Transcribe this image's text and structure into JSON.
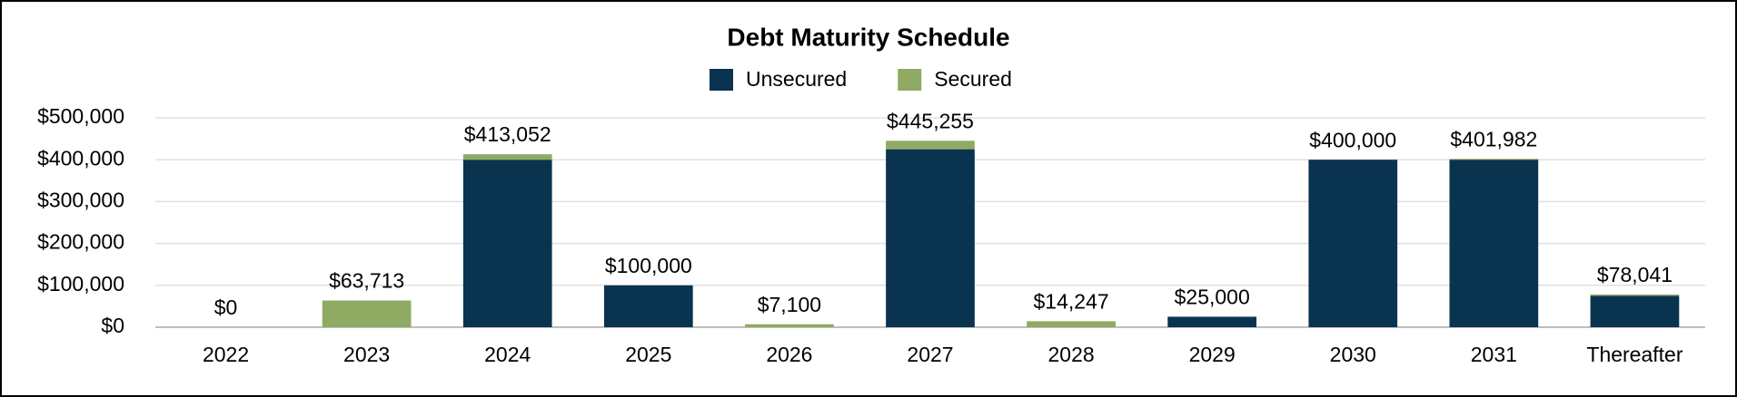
{
  "chart_data": {
    "type": "stacked-bar",
    "title": "Debt Maturity Schedule",
    "categories": [
      "2022",
      "2023",
      "2024",
      "2025",
      "2026",
      "2027",
      "2028",
      "2029",
      "2030",
      "2031",
      "Thereafter"
    ],
    "series": [
      {
        "name": "Unsecured",
        "color": "#0a3350",
        "values": [
          0,
          0,
          400000,
          100000,
          0,
          425000,
          0,
          25000,
          400000,
          400000,
          75000
        ]
      },
      {
        "name": "Secured",
        "color": "#8faa62",
        "values": [
          0,
          63713,
          13052,
          0,
          7100,
          20255,
          14247,
          0,
          0,
          1982,
          3041
        ]
      }
    ],
    "totals": {
      "values": [
        0,
        63713,
        413052,
        100000,
        7100,
        445255,
        14247,
        25000,
        400000,
        401982,
        78041
      ],
      "value_labels": [
        "$0",
        "$63,713",
        "$413,052",
        "$100,000",
        "$7,100",
        "$445,255",
        "$14,247",
        "$25,000",
        "$400,000",
        "$401,982",
        "$78,041"
      ]
    },
    "ylim": [
      0,
      500000
    ],
    "yticks": [
      {
        "value": 0,
        "label": "$0"
      },
      {
        "value": 100000,
        "label": "$100,000"
      },
      {
        "value": 200000,
        "label": "$200,000"
      },
      {
        "value": 300000,
        "label": "$300,000"
      },
      {
        "value": 400000,
        "label": "$400,000"
      },
      {
        "value": 500000,
        "label": "$500,000"
      }
    ],
    "grid": true
  }
}
